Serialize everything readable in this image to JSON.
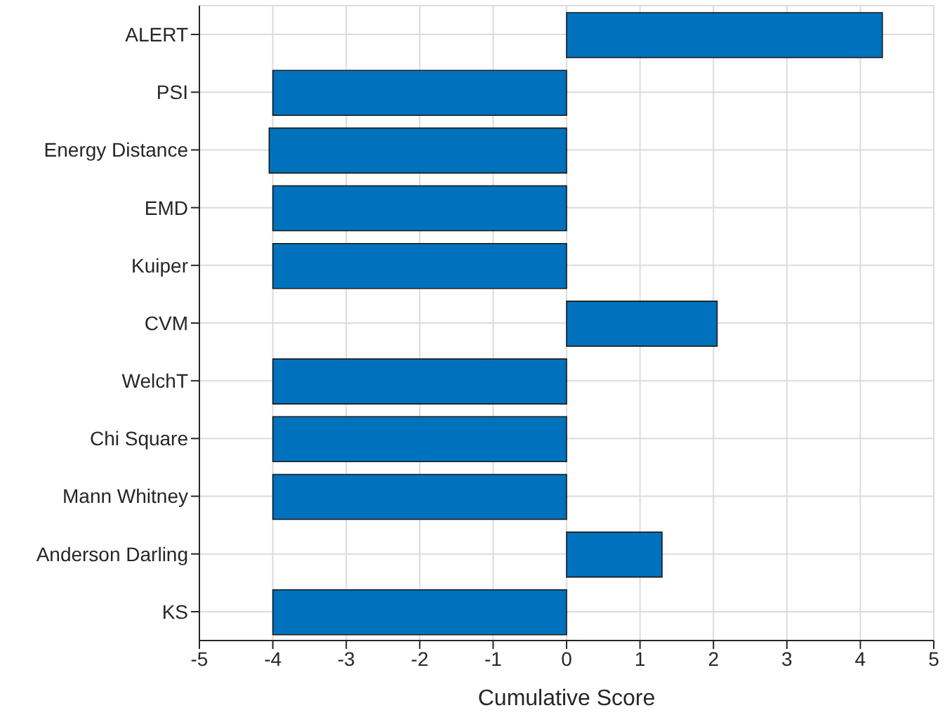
{
  "chart_data": {
    "type": "bar",
    "orientation": "horizontal",
    "xlabel": "Cumulative Score",
    "categories": [
      "ALERT",
      "PSI",
      "Energy Distance",
      "EMD",
      "Kuiper",
      "CVM",
      "WelchT",
      "Chi Square",
      "Mann Whitney",
      "Anderson Darling",
      "KS"
    ],
    "values": [
      4.3,
      -4,
      -4.05,
      -4,
      -4,
      2.05,
      -4,
      -4,
      -4,
      1.3,
      -4
    ],
    "color": "#0072bd",
    "xlim": [
      -5,
      5
    ],
    "xticks": [
      -5,
      -4,
      -3,
      -2,
      -1,
      0,
      1,
      2,
      3,
      4,
      5
    ],
    "grid": true
  }
}
